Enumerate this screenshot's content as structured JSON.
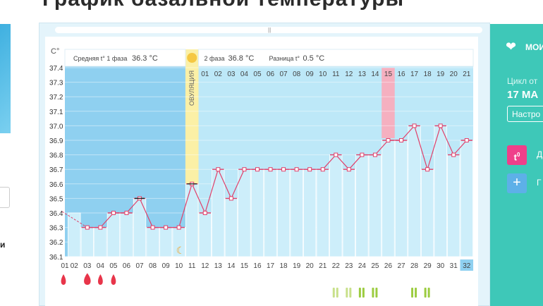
{
  "page": {
    "heading": "График базальной температуры"
  },
  "left": {
    "text": "и"
  },
  "chart_data": {
    "type": "line",
    "title": "",
    "xlabel": "",
    "ylabel": "C°",
    "ylim": [
      36.1,
      37.4
    ],
    "yticks": [
      "37.4",
      "37.3",
      "37.2",
      "37.1",
      "37.0",
      "36.9",
      "36.8",
      "36.7",
      "36.6",
      "36.5",
      "36.4",
      "36.3",
      "36.2",
      "36.1"
    ],
    "x": [
      "02",
      "03",
      "04",
      "05",
      "06",
      "07",
      "08",
      "09",
      "10",
      "11",
      "12",
      "13",
      "14",
      "15",
      "16",
      "17",
      "18",
      "19",
      "20",
      "21",
      "22",
      "23",
      "24",
      "25",
      "26",
      "27",
      "28",
      "29",
      "30",
      "31",
      "32"
    ],
    "x_partial_first": "01",
    "phase_day_labels": [
      "01",
      "02",
      "03",
      "04",
      "05",
      "06",
      "07",
      "08",
      "09",
      "10",
      "11",
      "12",
      "13",
      "14",
      "15",
      "16",
      "17",
      "18",
      "19",
      "20",
      "21"
    ],
    "series": [
      {
        "values": [
          36.4,
          36.3,
          36.3,
          36.4,
          36.4,
          36.5,
          36.3,
          36.3,
          36.3,
          36.6,
          36.4,
          36.7,
          36.5,
          36.7,
          36.7,
          36.7,
          36.7,
          36.7,
          36.7,
          36.7,
          36.8,
          36.7,
          36.8,
          36.8,
          36.9,
          36.9,
          37.0,
          36.7,
          37.0,
          36.8,
          36.9
        ]
      }
    ],
    "ovulation_day": "11",
    "highlighted_phase_day": "15",
    "today": "32",
    "phase1_label": "Средняя t° 1 фаза",
    "phase1_value": "36.3 °C",
    "phase2_label": "2 фаза",
    "phase2_value": "36.8 °C",
    "diff_label": "Разница t°",
    "diff_value": "0.5 °C",
    "ovulation_label": "ОВУЛЯЦИЯ",
    "drops_days": [
      "01",
      "03",
      "04",
      "05"
    ],
    "marks_days": [
      "22",
      "23",
      "24",
      "25",
      "26",
      "27",
      "28",
      "29"
    ],
    "colors": {
      "line": "#e0406a",
      "bar": "#cdeefa",
      "phase1_bg": "#8fd0f0",
      "phase2_bg": "#bde8f8",
      "ovulation": "#fbf0a6",
      "highlight": "#f5b0c0",
      "drop": "#e8354a",
      "mark": "#9ccc40"
    }
  },
  "right_panel": {
    "my_label": "МОИ",
    "cycle_label": "Цикл от",
    "cycle_date": "17 МА",
    "settings_label": "Настро",
    "t0_icon_text": "t",
    "t0_sup": "0",
    "t0_label": "Д",
    "plus_label": "Г"
  }
}
